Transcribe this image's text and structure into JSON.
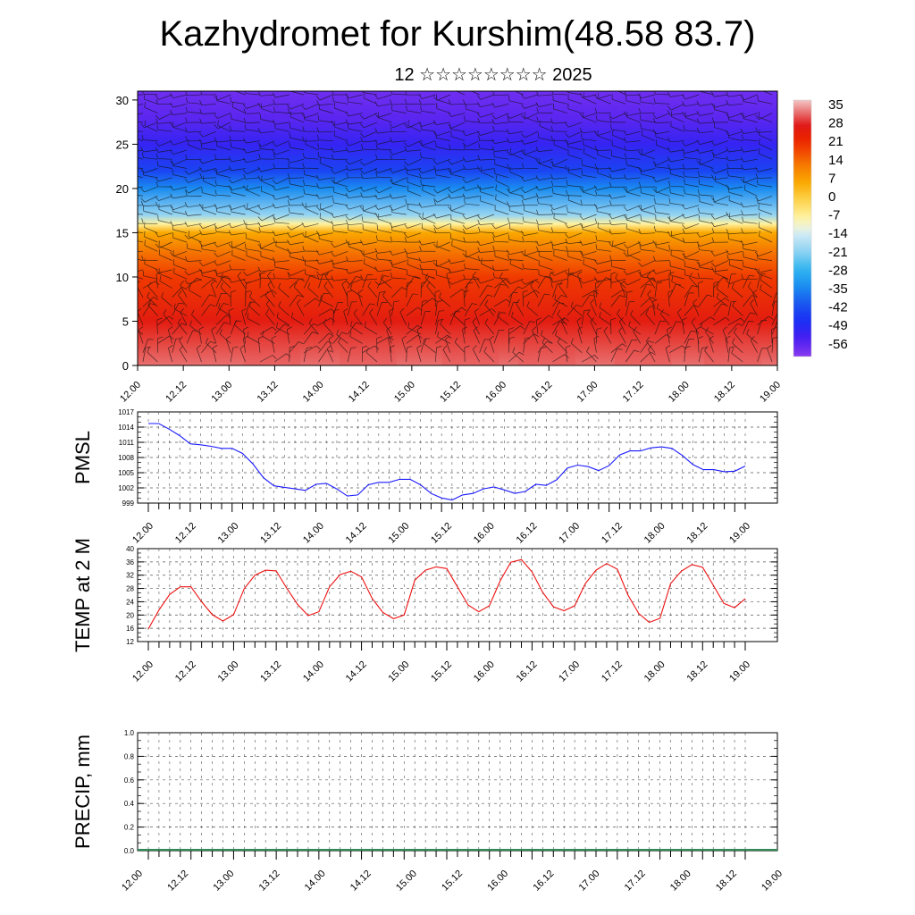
{
  "header": {
    "title": "Kazhydromet for Kurshim(48.58 83.7)",
    "subtitle": "12 ☆☆☆☆☆☆☆☆ 2025"
  },
  "chart_data": [
    {
      "id": "cross-section",
      "type": "heatmap",
      "title": "",
      "xlabel": "",
      "ylabel": "",
      "x_tick_labels": [
        "12.00",
        "12.12",
        "13.00",
        "13.12",
        "14.00",
        "14.12",
        "15.00",
        "15.12",
        "16.00",
        "16.12",
        "17.00",
        "17.12",
        "18.00",
        "18.12",
        "19.00"
      ],
      "y_ticks": [
        0,
        5,
        10,
        15,
        20,
        25,
        30
      ],
      "ylim": [
        0,
        31
      ],
      "colorbar": {
        "labels": [
          "35",
          "28",
          "21",
          "14",
          "7",
          "0",
          "-7",
          "-14",
          "-21",
          "-28",
          "-35",
          "-42",
          "-49",
          "-56"
        ],
        "values": [
          35,
          28,
          21,
          14,
          7,
          0,
          -7,
          -14,
          -21,
          -28,
          -35,
          -42,
          -49,
          -56
        ],
        "range": [
          -63,
          40
        ]
      },
      "temperature_profile": {
        "heights": [
          0,
          5,
          10,
          13,
          15,
          16,
          17,
          20,
          22,
          25,
          28,
          31
        ],
        "values": [
          35,
          28,
          21,
          14,
          7,
          -7,
          -20,
          -35,
          -45,
          -53,
          -58,
          -60
        ]
      },
      "wind_barbs": true
    },
    {
      "id": "pmsl",
      "type": "line",
      "title": "",
      "xlabel": "",
      "ylabel": "PMSL",
      "x_tick_labels": [
        "12.00",
        "12.12",
        "13.00",
        "13.12",
        "14.00",
        "14.12",
        "15.00",
        "15.12",
        "16.00",
        "16.12",
        "17.00",
        "17.12",
        "18.00",
        "18.12",
        "19.00"
      ],
      "y_tick_labels": [
        "1017",
        "1014",
        "1011",
        "1008",
        "1005",
        "1002",
        "999"
      ],
      "ylim": [
        999,
        1017
      ],
      "grid": true,
      "color": "#1a1aff",
      "values": [
        1014.7,
        1014.7,
        1013.6,
        1012.3,
        1010.7,
        1010.5,
        1010.2,
        1009.8,
        1009.8,
        1008.8,
        1006.7,
        1004.0,
        1002.4,
        1002.1,
        1001.8,
        1001.5,
        1002.7,
        1002.9,
        1001.8,
        1000.4,
        1000.6,
        1002.6,
        1003.1,
        1003.1,
        1003.7,
        1003.7,
        1002.6,
        1000.9,
        1000.0,
        999.6,
        1000.6,
        1000.9,
        1001.8,
        1002.2,
        1001.6,
        1000.9,
        1001.3,
        1002.7,
        1002.5,
        1003.6,
        1005.9,
        1006.5,
        1006.2,
        1005.4,
        1006.4,
        1008.5,
        1009.3,
        1009.3,
        1009.9,
        1010.1,
        1009.8,
        1008.4,
        1006.6,
        1005.6,
        1005.6,
        1005.2,
        1005.3,
        1006.3
      ]
    },
    {
      "id": "temp2m",
      "type": "line",
      "title": "",
      "xlabel": "",
      "ylabel": "TEMP at 2 M",
      "x_tick_labels": [
        "12.00",
        "12.12",
        "13.00",
        "13.12",
        "14.00",
        "14.12",
        "15.00",
        "15.12",
        "16.00",
        "16.12",
        "17.00",
        "17.12",
        "18.00",
        "18.12",
        "19.00"
      ],
      "y_tick_labels": [
        "40",
        "36",
        "32",
        "28",
        "24",
        "20",
        "16",
        "12"
      ],
      "ylim": [
        12,
        40
      ],
      "grid": true,
      "color": "#ee1111",
      "values": [
        15.8,
        21.5,
        26.2,
        28.5,
        28.5,
        24.0,
        20.1,
        18.2,
        20.1,
        28.0,
        32.0,
        33.5,
        33.3,
        28.0,
        23.2,
        19.8,
        21.0,
        28.5,
        32.2,
        33.2,
        31.5,
        25.0,
        20.8,
        18.9,
        20.0,
        30.5,
        33.5,
        34.5,
        34.0,
        28.5,
        23.0,
        21.0,
        22.8,
        30.2,
        35.9,
        36.7,
        33.0,
        26.8,
        22.5,
        21.3,
        22.8,
        29.5,
        33.5,
        35.5,
        33.8,
        26.0,
        20.5,
        17.8,
        19.0,
        29.5,
        33.2,
        35.2,
        34.4,
        29.0,
        23.5,
        22.2,
        24.9
      ]
    },
    {
      "id": "precip",
      "type": "bar",
      "title": "",
      "xlabel": "",
      "ylabel": "PRECIP, mm",
      "x_tick_labels": [
        "12.00",
        "12.12",
        "13.00",
        "13.12",
        "14.00",
        "14.12",
        "15.00",
        "15.12",
        "16.00",
        "16.12",
        "17.00",
        "17.12",
        "18.00",
        "18.12",
        "19.00"
      ],
      "y_tick_labels": [
        "1.0",
        "0.8",
        "0.6",
        "0.4",
        "0.2",
        "0.0"
      ],
      "ylim": [
        0,
        1
      ],
      "grid": true,
      "color": "#2e8b57",
      "values": [
        0,
        0,
        0,
        0,
        0,
        0,
        0,
        0,
        0,
        0,
        0,
        0,
        0,
        0,
        0,
        0,
        0,
        0,
        0,
        0,
        0,
        0,
        0,
        0,
        0,
        0,
        0,
        0,
        0,
        0,
        0,
        0,
        0,
        0,
        0,
        0,
        0,
        0,
        0,
        0,
        0,
        0,
        0,
        0,
        0,
        0,
        0,
        0,
        0,
        0,
        0,
        0,
        0,
        0,
        0,
        0,
        0
      ]
    }
  ]
}
